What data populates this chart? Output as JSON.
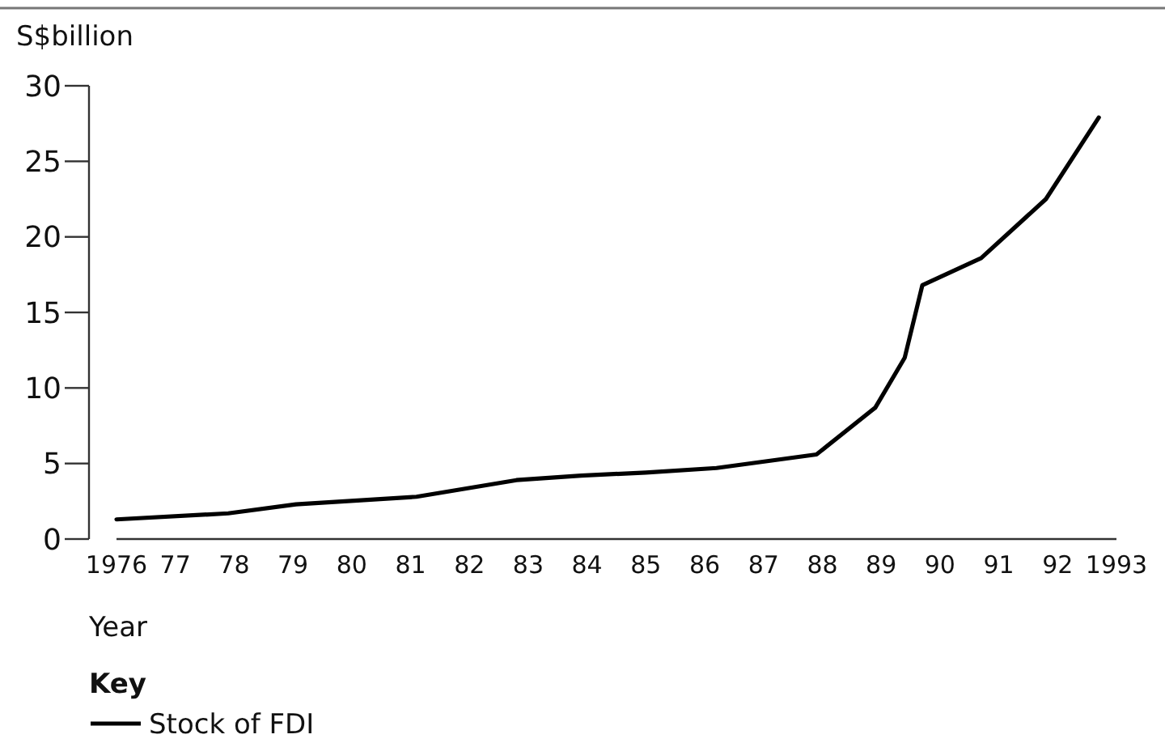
{
  "chart_data": {
    "type": "line",
    "ylabel": "S$billion",
    "xlabel": "Year",
    "legend_title": "Key",
    "legend": "bottom",
    "grid": false,
    "marker": "none",
    "line_style": "solid",
    "xlim": [
      1976,
      1993
    ],
    "xticks": [
      {
        "value": 1976,
        "label": "1976"
      },
      {
        "value": 1977,
        "label": "77"
      },
      {
        "value": 1978,
        "label": "78"
      },
      {
        "value": 1979,
        "label": "79"
      },
      {
        "value": 1980,
        "label": "80"
      },
      {
        "value": 1981,
        "label": "81"
      },
      {
        "value": 1982,
        "label": "82"
      },
      {
        "value": 1983,
        "label": "83"
      },
      {
        "value": 1984,
        "label": "84"
      },
      {
        "value": 1985,
        "label": "85"
      },
      {
        "value": 1986,
        "label": "86"
      },
      {
        "value": 1987,
        "label": "87"
      },
      {
        "value": 1988,
        "label": "88"
      },
      {
        "value": 1989,
        "label": "89"
      },
      {
        "value": 1990,
        "label": "90"
      },
      {
        "value": 1991,
        "label": "91"
      },
      {
        "value": 1992,
        "label": "92"
      },
      {
        "value": 1993,
        "label": "1993"
      }
    ],
    "ylim": [
      0,
      30
    ],
    "yticks": [
      0,
      5,
      10,
      15,
      20,
      25,
      30
    ],
    "x": [
      1976,
      1977.9,
      1979.05,
      1981.1,
      1982.8,
      1983.9,
      1985,
      1986.2,
      1987.9,
      1988.9,
      1989.4,
      1989.7,
      1990.7,
      1991.8,
      1992.7
    ],
    "series": [
      {
        "name": "Stock of FDI",
        "color": "#000000",
        "values": [
          1.3,
          1.7,
          2.3,
          2.8,
          3.9,
          4.2,
          4.4,
          4.7,
          5.6,
          8.7,
          12.0,
          16.8,
          18.6,
          22.5,
          27.9
        ]
      }
    ]
  }
}
